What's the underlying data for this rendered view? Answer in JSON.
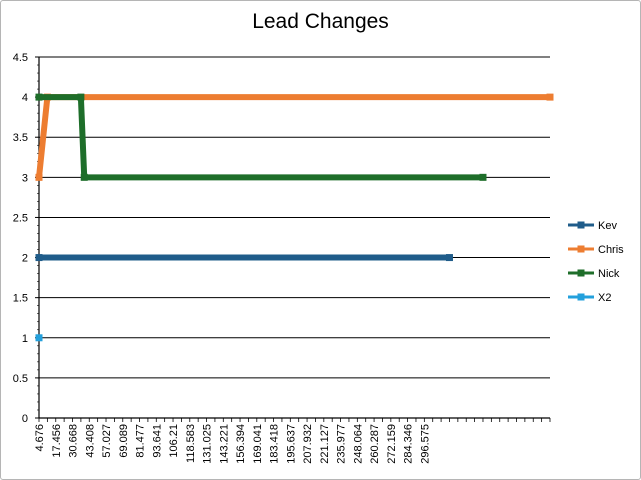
{
  "chart_data": {
    "type": "line",
    "title": "Lead Changes",
    "xlabel": "",
    "ylabel": "",
    "ylim": [
      0,
      4.5
    ],
    "yticks": [
      "0",
      "0.5",
      "1",
      "1.5",
      "2",
      "2.5",
      "3",
      "3.5",
      "4",
      "4.5"
    ],
    "x_tick_labels": [
      "4.676",
      "17.456",
      "30.668",
      "43.408",
      "57.027",
      "69.089",
      "81.477",
      "93.641",
      "106.21",
      "118.583",
      "131.025",
      "143.221",
      "156.394",
      "169.041",
      "183.418",
      "195.637",
      "207.932",
      "221.127",
      "235.977",
      "248.064",
      "260.287",
      "272.159",
      "284.346",
      "296.575"
    ],
    "x_range": [
      0,
      61
    ],
    "grid": true,
    "legend_position": "right",
    "series": [
      {
        "name": "Kev",
        "color": "#1f5c8a",
        "x": [
          0,
          49
        ],
        "y": [
          2,
          2
        ]
      },
      {
        "name": "Chris",
        "color": "#ed7d31",
        "x": [
          0,
          1,
          61
        ],
        "y": [
          3,
          4,
          4
        ]
      },
      {
        "name": "Nick",
        "color": "#1e6e2a",
        "x": [
          0,
          5,
          5.4,
          53
        ],
        "y": [
          4,
          4,
          3,
          3
        ]
      },
      {
        "name": "X2",
        "color": "#23a0dc",
        "x": [
          0
        ],
        "y": [
          1
        ]
      }
    ]
  }
}
